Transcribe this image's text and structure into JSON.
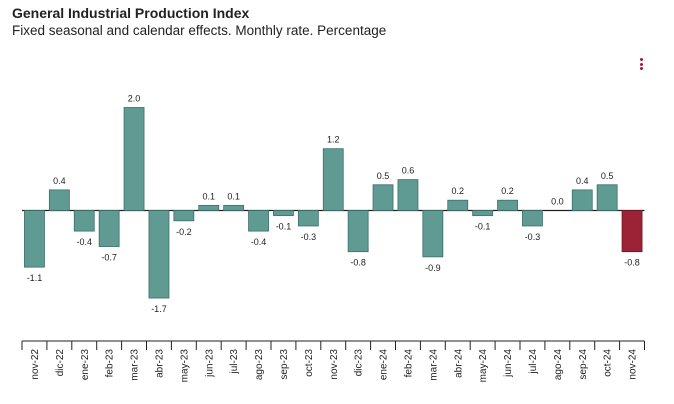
{
  "chart_data": {
    "type": "bar",
    "title": "General Industrial Production Index",
    "subtitle": "Fixed seasonal and calendar effects. Monthly rate. Percentage",
    "categories": [
      "nov-22",
      "dic-22",
      "ene-23",
      "feb-23",
      "mar-23",
      "abr-23",
      "may-23",
      "jun-23",
      "jul-23",
      "ago-23",
      "sep-23",
      "oct-23",
      "nov-23",
      "dic-23",
      "ene-24",
      "feb-24",
      "mar-24",
      "abr-24",
      "may-24",
      "jun-24",
      "jul-24",
      "ago-24",
      "sep-24",
      "oct-24",
      "nov-24"
    ],
    "values": [
      -1.1,
      0.4,
      -0.4,
      -0.7,
      2.0,
      -1.7,
      -0.2,
      0.1,
      0.1,
      -0.4,
      -0.1,
      -0.3,
      1.2,
      -0.8,
      0.5,
      0.6,
      -0.9,
      0.2,
      -0.1,
      0.2,
      -0.3,
      0.0,
      0.4,
      0.5,
      -0.8
    ],
    "value_labels": [
      "-1.1",
      "0.4",
      "-0.4",
      "-0.7",
      "2.0",
      "-1.7",
      "-0.2",
      "0.1",
      "0.1",
      "-0.4",
      "-0.1",
      "-0.3",
      "1.2",
      "-0.8",
      "0.5",
      "0.6",
      "-0.9",
      "0.2",
      "-0.1",
      "0.2",
      "-0.3",
      "0.0",
      "0.4",
      "0.5",
      "-0.8"
    ],
    "highlight_index": 24,
    "xlabel": "",
    "ylabel": "",
    "ylim": [
      -2.0,
      2.4
    ],
    "grid": false,
    "legend": "none"
  },
  "colors": {
    "bar": "#5f9a93",
    "bar_stroke": "#3c6f69",
    "highlight": "#9b2335",
    "highlight_stroke": "#6e1424",
    "menu": "#a5193a"
  },
  "icons": {
    "menu": "kebab-menu-icon"
  }
}
